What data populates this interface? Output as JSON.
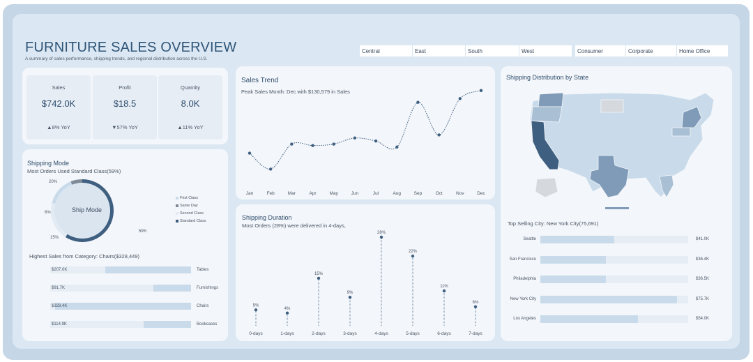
{
  "header": {
    "title": "FURNITURE SALES OVERVIEW",
    "subtitle": "A summary of sales performance, shipping trends, and regional distribution across the U.S."
  },
  "filters": {
    "region": [
      "Central",
      "East",
      "South",
      "West"
    ],
    "segment": [
      "Consumer",
      "Corporate",
      "Home Office"
    ]
  },
  "kpis": [
    {
      "label": "Sales",
      "value": "$742.0K",
      "yoy": "▲8% YoY"
    },
    {
      "label": "Profit",
      "value": "$18.5",
      "yoy": "▼57% YoY"
    },
    {
      "label": "Quantity",
      "value": "8.0K",
      "yoy": "▲11% YoY"
    }
  ],
  "shipping_mode": {
    "title": "Shipping Mode",
    "subtitle": "Most Orders Used Standard Class(59%)",
    "center_label": "Ship Mode",
    "legend": [
      "First Class",
      "Same Day",
      "Second Class",
      "Standard Class"
    ]
  },
  "category": {
    "title": "Highest Sales from Category: Chairs($328,449)"
  },
  "sales_trend": {
    "title": "Sales Trend",
    "subtitle": "Peak Sales Month: Dec with $130,579 in Sales"
  },
  "shipping_duration": {
    "title": "Shipping Duration",
    "subtitle": "Most Orders (28%) were delivered in 4-days,"
  },
  "map": {
    "title": "Shipping Distribution by State",
    "top_city_title": "Top Selling City: New York City(75,691)"
  },
  "colors": {
    "dark": "#3f5f80",
    "mid": "#7f9bb8",
    "light": "#c9dbea",
    "pale": "#e2eaf3"
  },
  "chart_data": [
    {
      "type": "line",
      "name": "sales_trend",
      "x": [
        "Jan",
        "Feb",
        "Mar",
        "Apr",
        "May",
        "Jun",
        "Jul",
        "Aug",
        "Sep",
        "Oct",
        "Nov",
        "Dec"
      ],
      "values": [
        48000,
        27000,
        60000,
        58000,
        60000,
        68000,
        64000,
        56000,
        115000,
        72000,
        120000,
        130579
      ],
      "ylim": [
        20000,
        135000
      ]
    },
    {
      "type": "pie",
      "name": "shipping_mode",
      "categories": [
        "Standard Class",
        "Second Class",
        "First Class",
        "Same Day"
      ],
      "values": [
        59,
        20,
        15,
        6
      ],
      "labels": [
        "59%",
        "20%",
        "15%",
        "6%"
      ]
    },
    {
      "type": "bar",
      "name": "category_sales",
      "categories": [
        "Tables",
        "Furnishings",
        "Chairs",
        "Bookcases"
      ],
      "values": [
        207000,
        91700,
        328400,
        114900
      ],
      "labels": [
        "$207.0K",
        "$91.7K",
        "$328.4K",
        "$114.9K"
      ],
      "xlim": [
        0,
        340000
      ]
    },
    {
      "type": "scatter",
      "name": "shipping_duration",
      "categories": [
        "0-days",
        "1-days",
        "2-days",
        "3-days",
        "4-days",
        "5-days",
        "6-days",
        "7-days"
      ],
      "values": [
        5,
        4,
        15,
        9,
        28,
        22,
        11,
        6
      ],
      "labels": [
        "5%",
        "4%",
        "15%",
        "9%",
        "28%",
        "22%",
        "11%",
        "6%"
      ],
      "ylim": [
        0,
        28
      ]
    },
    {
      "type": "bar",
      "name": "top_cities",
      "categories": [
        "Seattle",
        "San Francisco",
        "Philadelphia",
        "New York City",
        "Los Angeles"
      ],
      "values": [
        41000,
        36400,
        36500,
        75700,
        54000
      ],
      "labels": [
        "$41.0K",
        "$36.4K",
        "$36.5K",
        "$75.7K",
        "$54.0K"
      ],
      "xlim": [
        0,
        82000
      ]
    }
  ]
}
